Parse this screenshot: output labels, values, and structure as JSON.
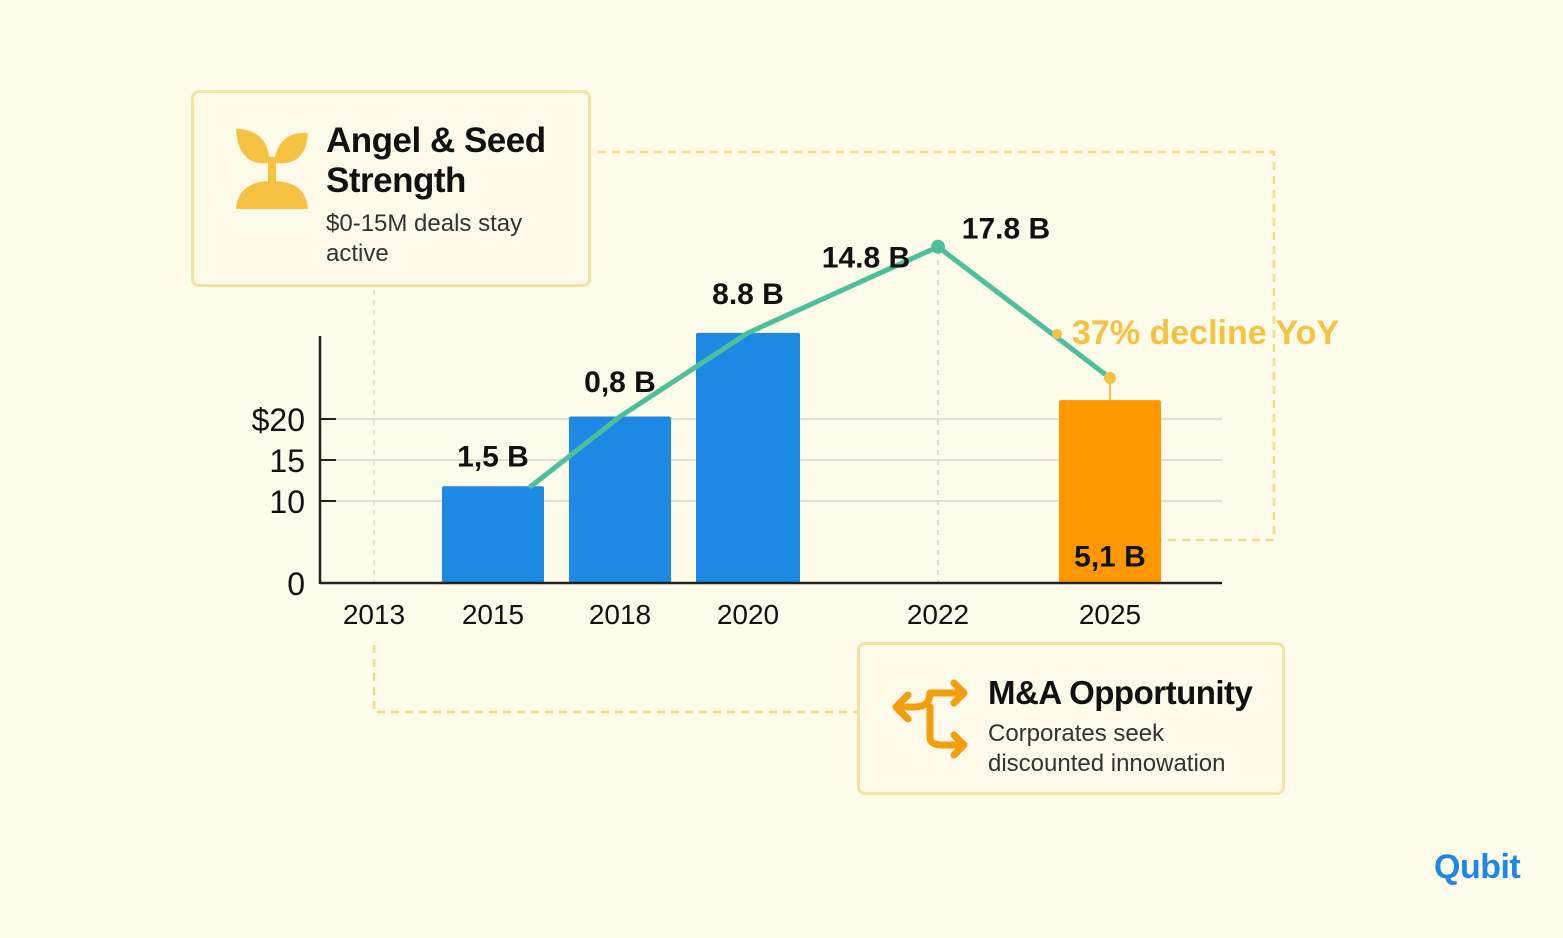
{
  "chart_data": {
    "type": "bar",
    "categories": [
      "2013",
      "2015",
      "2018",
      "2020",
      "2022",
      "2025"
    ],
    "bars": [
      {
        "year": "2015",
        "value": 11.8,
        "color": "#1e88e5"
      },
      {
        "year": "2018",
        "value": 20.3,
        "color": "#1e88e5"
      },
      {
        "year": "2020",
        "value": 30.5,
        "color": "#1e88e5"
      },
      {
        "year": "2025",
        "value": 22.3,
        "color": "#ff9800"
      }
    ],
    "trend_line": {
      "color": "#4dbf9b",
      "points": [
        {
          "x": "2015",
          "y": 11.8
        },
        {
          "x": "2018",
          "y": 20.3
        },
        {
          "x": "2020",
          "y": 30.5
        },
        {
          "x": "2022",
          "y": 41.0
        },
        {
          "x": "2025",
          "y": 25.0
        }
      ]
    },
    "data_labels": [
      {
        "x": "2015",
        "y": 14.2,
        "text": "1,5 B"
      },
      {
        "x": "2018",
        "y": 23.3,
        "text": "0,8 B"
      },
      {
        "x": "2020",
        "y": 34.0,
        "text": "8.8 B"
      },
      {
        "x": "2021",
        "y": 38.5,
        "text": "14.8 B"
      },
      {
        "x": "2022",
        "y": 42.0,
        "text": "17.8 B"
      },
      {
        "x": "2025",
        "y": 2.0,
        "text": "5,1 B"
      }
    ],
    "annotation": {
      "text": "37% decline YoY",
      "color": "#f5c242"
    },
    "yticks": [
      {
        "value": 0,
        "label": "0"
      },
      {
        "value": 10,
        "label": "10"
      },
      {
        "value": 15,
        "label": "15"
      },
      {
        "value": 20,
        "label": "$20"
      }
    ],
    "ylim": [
      0,
      30
    ],
    "grid": true,
    "colors": {
      "bar": "#1e88e5",
      "highlight": "#ff9800",
      "line": "#4dbf9b",
      "accent": "#f5c242"
    }
  },
  "cards": {
    "angel": {
      "title": "Angel & Seed Strength",
      "text": "$0-15M deals stay active",
      "icon": "sprout-icon"
    },
    "ma": {
      "title": "M&A Opportunity",
      "text": "Corporates seek discounted innowation",
      "icon": "split-arrows-icon"
    }
  },
  "brand": {
    "name": "Qubit",
    "color": "#1e88e5"
  }
}
